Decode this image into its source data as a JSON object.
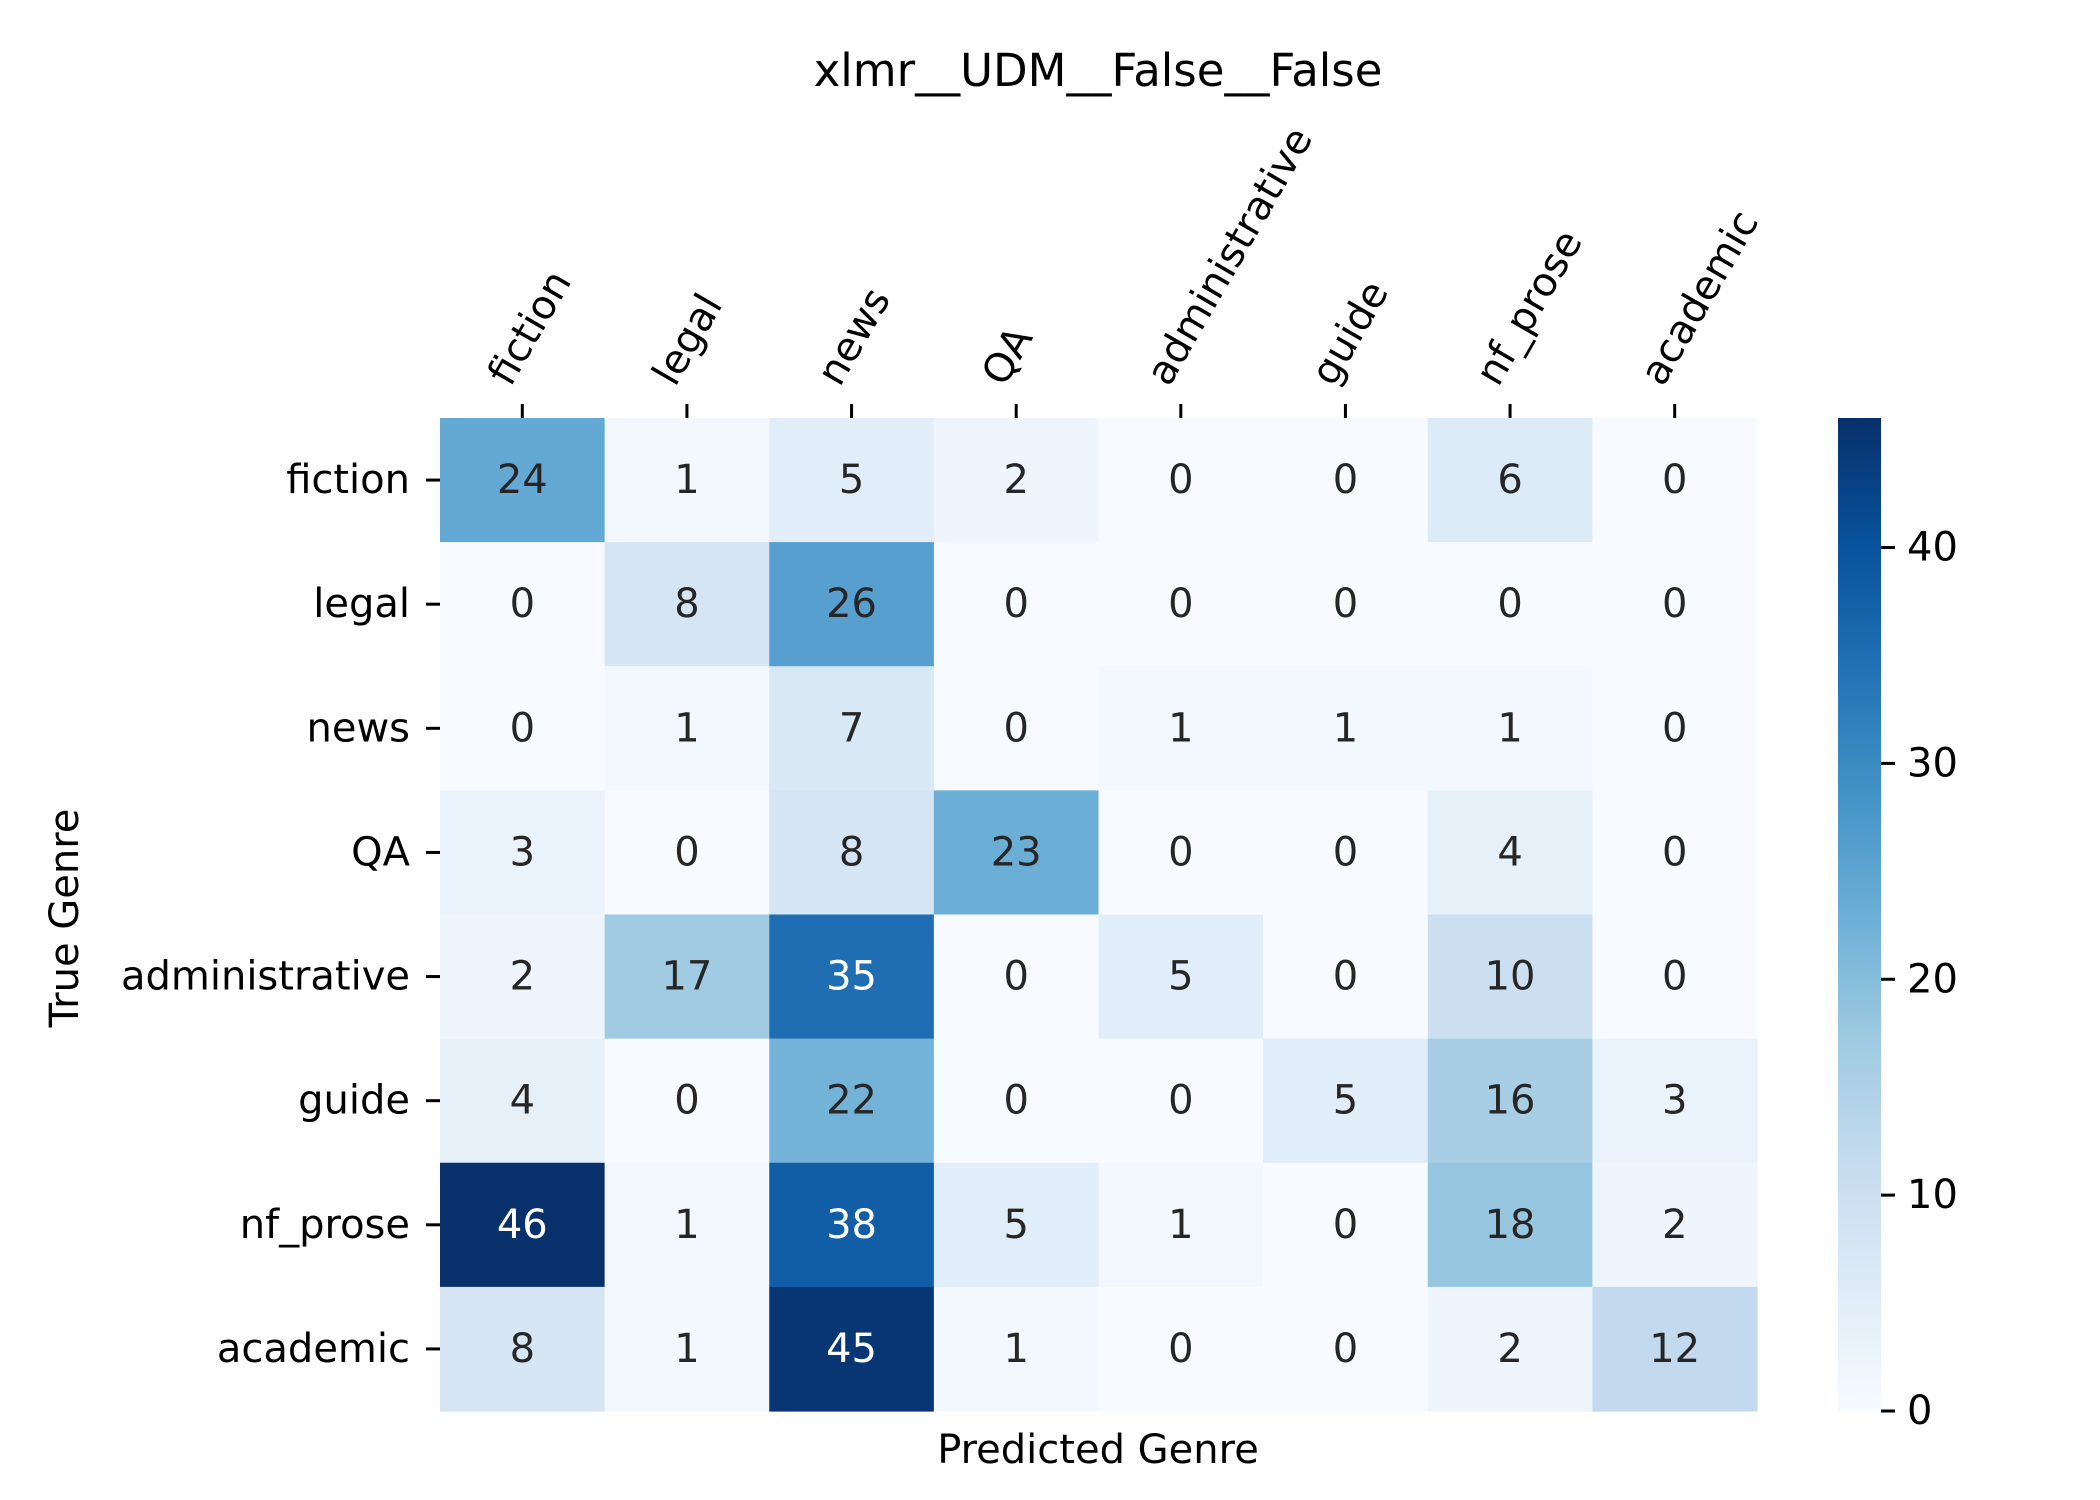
{
  "chart_data": {
    "type": "heatmap",
    "title": "xlmr__UDM__False__False",
    "xlabel": "Predicted Genre",
    "ylabel": "True Genre",
    "x_categories": [
      "fiction",
      "legal",
      "news",
      "QA",
      "administrative",
      "guide",
      "nf_prose",
      "academic"
    ],
    "y_categories": [
      "fiction",
      "legal",
      "news",
      "QA",
      "administrative",
      "guide",
      "nf_prose",
      "academic"
    ],
    "values": [
      [
        24,
        1,
        5,
        2,
        0,
        0,
        6,
        0
      ],
      [
        0,
        8,
        26,
        0,
        0,
        0,
        0,
        0
      ],
      [
        0,
        1,
        7,
        0,
        1,
        1,
        1,
        0
      ],
      [
        3,
        0,
        8,
        23,
        0,
        0,
        4,
        0
      ],
      [
        2,
        17,
        35,
        0,
        5,
        0,
        10,
        0
      ],
      [
        4,
        0,
        22,
        0,
        0,
        5,
        16,
        3
      ],
      [
        46,
        1,
        38,
        5,
        1,
        0,
        18,
        2
      ],
      [
        8,
        1,
        45,
        1,
        0,
        0,
        2,
        12
      ]
    ],
    "colormap": "Blues",
    "vmin": 0,
    "vmax": 46,
    "colorbar_ticks": [
      "0",
      "10",
      "20",
      "30",
      "40"
    ],
    "colorbar_tick_values": [
      0,
      10,
      20,
      30,
      40
    ],
    "x_ticks_position": "top",
    "grid": false
  }
}
